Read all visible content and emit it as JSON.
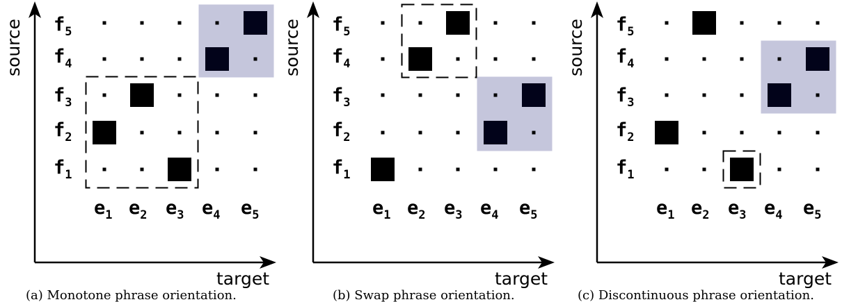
{
  "panels": [
    {
      "id": "a",
      "caption": "(a) Monotone phrase orientation.",
      "y_axis_label": "source",
      "x_axis_label": "target",
      "source_labels": [
        {
          "base": "f",
          "sub": "5"
        },
        {
          "base": "f",
          "sub": "4"
        },
        {
          "base": "f",
          "sub": "3"
        },
        {
          "base": "f",
          "sub": "2"
        },
        {
          "base": "f",
          "sub": "1"
        }
      ],
      "target_labels": [
        {
          "base": "e",
          "sub": "1"
        },
        {
          "base": "e",
          "sub": "2"
        },
        {
          "base": "e",
          "sub": "3"
        },
        {
          "base": "e",
          "sub": "4"
        },
        {
          "base": "e",
          "sub": "5"
        }
      ],
      "alignments": [
        [
          1,
          2
        ],
        [
          2,
          3
        ],
        [
          3,
          1
        ],
        [
          4,
          4
        ],
        [
          5,
          5
        ]
      ],
      "shaded_block": {
        "cols": [
          4,
          5
        ],
        "rows": [
          4,
          5
        ]
      },
      "dashed_block": {
        "cols": [
          1,
          3
        ],
        "rows": [
          1,
          3
        ]
      }
    },
    {
      "id": "b",
      "caption": "(b) Swap phrase orientation.",
      "y_axis_label": "source",
      "x_axis_label": "target",
      "source_labels": [
        {
          "base": "f",
          "sub": "5"
        },
        {
          "base": "f",
          "sub": "4"
        },
        {
          "base": "f",
          "sub": "3"
        },
        {
          "base": "f",
          "sub": "2"
        },
        {
          "base": "f",
          "sub": "1"
        }
      ],
      "target_labels": [
        {
          "base": "e",
          "sub": "1"
        },
        {
          "base": "e",
          "sub": "2"
        },
        {
          "base": "e",
          "sub": "3"
        },
        {
          "base": "e",
          "sub": "4"
        },
        {
          "base": "e",
          "sub": "5"
        }
      ],
      "alignments": [
        [
          1,
          1
        ],
        [
          4,
          2
        ],
        [
          5,
          3
        ],
        [
          2,
          4
        ],
        [
          3,
          5
        ]
      ],
      "shaded_block": {
        "cols": [
          4,
          5
        ],
        "rows": [
          2,
          3
        ]
      },
      "dashed_block": {
        "cols": [
          2,
          3
        ],
        "rows": [
          4,
          5
        ]
      }
    },
    {
      "id": "c",
      "caption": "(c) Discontinuous phrase orientation.",
      "y_axis_label": "source",
      "x_axis_label": "target",
      "source_labels": [
        {
          "base": "f",
          "sub": "5"
        },
        {
          "base": "f",
          "sub": "4"
        },
        {
          "base": "f",
          "sub": "3"
        },
        {
          "base": "f",
          "sub": "2"
        },
        {
          "base": "f",
          "sub": "1"
        }
      ],
      "target_labels": [
        {
          "base": "e",
          "sub": "1"
        },
        {
          "base": "e",
          "sub": "2"
        },
        {
          "base": "e",
          "sub": "3"
        },
        {
          "base": "e",
          "sub": "4"
        },
        {
          "base": "e",
          "sub": "5"
        }
      ],
      "alignments": [
        [
          1,
          2
        ],
        [
          2,
          5
        ],
        [
          3,
          1
        ],
        [
          4,
          3
        ],
        [
          5,
          4
        ]
      ],
      "shaded_block": {
        "cols": [
          4,
          5
        ],
        "rows": [
          3,
          4
        ]
      },
      "dashed_block": {
        "cols": [
          3,
          3
        ],
        "rows": [
          1,
          1
        ]
      }
    }
  ],
  "colors": {
    "shade": "#c5c6dc",
    "cell": "#000000",
    "cell_on_shade": "#02031a",
    "dot": "#000000",
    "axis": "#000000"
  }
}
